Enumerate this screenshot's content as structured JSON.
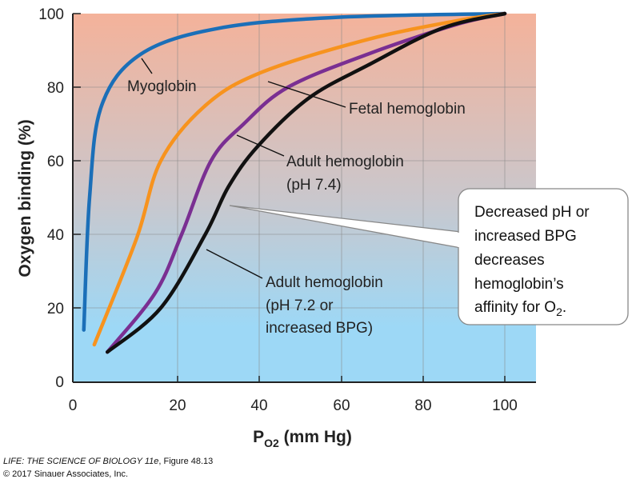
{
  "chart_data": {
    "type": "line",
    "xlabel": {
      "main": "P",
      "sub": "O2",
      "rest": " (mm Hg)"
    },
    "ylabel": "Oxygen binding (%)",
    "xlim": [
      0,
      100
    ],
    "ylim": [
      0,
      100
    ],
    "xticks": [
      "0",
      "20",
      "40",
      "60",
      "80",
      "100"
    ],
    "yticks": [
      "0",
      "20",
      "40",
      "60",
      "80",
      "100"
    ],
    "grid": true,
    "background": {
      "top": "#f4b29a",
      "middle": "#cac7cc",
      "bottom": "#9dd8f6"
    },
    "series": [
      {
        "name": "Myoglobin",
        "color": "#1b6fb8",
        "x": [
          2.1,
          3.2,
          5.5,
          13,
          30,
          59,
          100
        ],
        "y": [
          14,
          50,
          75,
          89,
          96,
          99,
          100
        ]
      },
      {
        "name": "Fetal hemoglobin",
        "color": "#f7931e",
        "x": [
          4.1,
          12.2,
          16.8,
          26.8,
          40.5,
          66.5,
          88,
          100
        ],
        "y": [
          10,
          39,
          60,
          75,
          84,
          93,
          98,
          100
        ]
      },
      {
        "name": "Adult hemoglobin (pH 7.4)",
        "color": "#7a2f92",
        "x": [
          6.6,
          15.7,
          21,
          28.2,
          36.2,
          47,
          66.5,
          88,
          100
        ],
        "y": [
          8,
          24,
          40,
          60,
          70,
          80,
          89,
          97,
          100
        ]
      },
      {
        "name": "Adult hemoglobin (pH 7.2 or increased BPG)",
        "color": "#111111",
        "x": [
          6.6,
          16.8,
          26.8,
          32.5,
          39.7,
          52,
          66.5,
          84.6,
          100
        ],
        "y": [
          8,
          20,
          40,
          53,
          64,
          77,
          86,
          96,
          100
        ]
      }
    ],
    "annotations": {
      "myoglobin": [
        "Myoglobin"
      ],
      "fetal": [
        "Fetal hemoglobin"
      ],
      "adult74": [
        "Adult hemoglobin",
        "(pH 7.4)"
      ],
      "adult72": [
        "Adult hemoglobin",
        "(pH 7.2 or",
        "increased BPG)"
      ]
    },
    "callout": {
      "lines": [
        "Decreased pH or",
        "increased BPG",
        "decreases",
        "hemoglobin’s"
      ],
      "last_line": {
        "text": "affinity for O",
        "sub": "2",
        "end": "."
      }
    }
  },
  "footer": {
    "book": "LIFE: THE SCIENCE OF BIOLOGY 11e",
    "figure": ", Figure 48.13",
    "copyright": "© 2017 Sinauer Associates, Inc."
  }
}
